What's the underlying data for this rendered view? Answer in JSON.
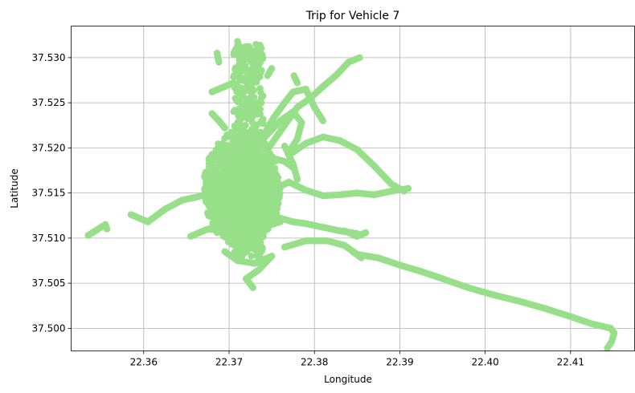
{
  "chart_data": {
    "type": "scatter",
    "title": "Trip for Vehicle 7",
    "xlabel": "Longitude",
    "ylabel": "Latitude",
    "xlim": [
      22.3515,
      22.4175
    ],
    "ylim": [
      37.4975,
      37.5335
    ],
    "xticks": [
      "22.36",
      "22.37",
      "22.38",
      "22.39",
      "22.40",
      "22.41"
    ],
    "yticks": [
      "37.500",
      "37.505",
      "37.510",
      "37.515",
      "37.520",
      "37.525",
      "37.530"
    ],
    "grid": true,
    "marker_color": "#98df8a",
    "paths": [
      [
        [
          22.3535,
          37.5103
        ],
        [
          22.3555,
          37.5115
        ],
        [
          22.3557,
          37.511
        ]
      ],
      [
        [
          22.3585,
          37.5126
        ],
        [
          22.3605,
          37.5118
        ],
        [
          22.3625,
          37.5132
        ],
        [
          22.3645,
          37.5142
        ],
        [
          22.366,
          37.5145
        ],
        [
          22.368,
          37.515
        ]
      ],
      [
        [
          22.3675,
          37.5158
        ],
        [
          22.369,
          37.5152
        ],
        [
          22.3705,
          37.5148
        ],
        [
          22.3725,
          37.5146
        ],
        [
          22.374,
          37.515
        ],
        [
          22.3755,
          37.5154
        ]
      ],
      [
        [
          22.3655,
          37.5102
        ],
        [
          22.3675,
          37.511
        ],
        [
          22.3695,
          37.5108
        ],
        [
          22.3715,
          37.511
        ],
        [
          22.374,
          37.5112
        ],
        [
          22.376,
          37.5118
        ]
      ],
      [
        [
          22.3735,
          37.5115
        ],
        [
          22.376,
          37.5122
        ],
        [
          22.3775,
          37.5118
        ],
        [
          22.379,
          37.5116
        ],
        [
          22.381,
          37.5112
        ],
        [
          22.383,
          37.5108
        ],
        [
          22.385,
          37.5105
        ]
      ],
      [
        [
          22.3765,
          37.509
        ],
        [
          22.379,
          37.5097
        ],
        [
          22.3815,
          37.5097
        ],
        [
          22.3835,
          37.5092
        ],
        [
          22.385,
          37.5082
        ],
        [
          22.3875,
          37.5078
        ],
        [
          22.39,
          37.507
        ],
        [
          22.3925,
          37.5063
        ],
        [
          22.395,
          37.5055
        ],
        [
          22.398,
          37.5045
        ],
        [
          22.401,
          37.5037
        ],
        [
          22.404,
          37.503
        ],
        [
          22.407,
          37.5022
        ],
        [
          22.41,
          37.5013
        ],
        [
          22.4125,
          37.5005
        ],
        [
          22.4147,
          37.5
        ],
        [
          22.4151,
          37.4995
        ],
        [
          22.4148,
          37.4985
        ],
        [
          22.4143,
          37.4978
        ]
      ],
      [
        [
          22.3755,
          37.5155
        ],
        [
          22.377,
          37.5162
        ],
        [
          22.379,
          37.5153
        ],
        [
          22.381,
          37.5147
        ],
        [
          22.383,
          37.5148
        ],
        [
          22.385,
          37.515
        ],
        [
          22.387,
          37.5148
        ],
        [
          22.389,
          37.5152
        ],
        [
          22.391,
          37.5155
        ]
      ],
      [
        [
          22.3835,
          37.5108
        ],
        [
          22.385,
          37.5102
        ],
        [
          22.386,
          37.5106
        ]
      ],
      [
        [
          22.3845,
          37.5085
        ],
        [
          22.3855,
          37.5078
        ]
      ],
      [
        [
          22.3705,
          37.5175
        ],
        [
          22.3725,
          37.5185
        ],
        [
          22.3745,
          37.519
        ],
        [
          22.3765,
          37.5185
        ],
        [
          22.3775,
          37.5178
        ]
      ],
      [
        [
          22.3775,
          37.5195
        ],
        [
          22.379,
          37.5205
        ],
        [
          22.381,
          37.5212
        ],
        [
          22.383,
          37.5208
        ],
        [
          22.385,
          37.5198
        ],
        [
          22.387,
          37.518
        ],
        [
          22.389,
          37.516
        ],
        [
          22.3905,
          37.5152
        ]
      ],
      [
        [
          22.3725,
          37.5195
        ],
        [
          22.3745,
          37.5215
        ],
        [
          22.376,
          37.523
        ],
        [
          22.3775,
          37.524
        ],
        [
          22.3785,
          37.5228
        ],
        [
          22.378,
          37.521
        ],
        [
          22.377,
          37.5195
        ]
      ],
      [
        [
          22.3745,
          37.5198
        ],
        [
          22.3765,
          37.5225
        ],
        [
          22.378,
          37.5245
        ],
        [
          22.3795,
          37.5255
        ],
        [
          22.381,
          37.5268
        ],
        [
          22.3825,
          37.528
        ],
        [
          22.384,
          37.5295
        ],
        [
          22.3853,
          37.53
        ]
      ],
      [
        [
          22.3738,
          37.521
        ],
        [
          22.3752,
          37.5233
        ],
        [
          22.3765,
          37.525
        ],
        [
          22.3775,
          37.5262
        ],
        [
          22.379,
          37.5265
        ],
        [
          22.38,
          37.5245
        ],
        [
          22.381,
          37.523
        ]
      ],
      [
        [
          22.3715,
          37.5298
        ],
        [
          22.3728,
          37.5302
        ],
        [
          22.3735,
          37.5292
        ]
      ],
      [
        [
          22.371,
          37.5318
        ],
        [
          22.3712,
          37.531
        ],
        [
          22.3722,
          37.5312
        ]
      ],
      [
        [
          22.3686,
          37.5305
        ],
        [
          22.3688,
          37.5295
        ]
      ],
      [
        [
          22.368,
          37.5262
        ],
        [
          22.3695,
          37.5268
        ],
        [
          22.3705,
          37.5272
        ]
      ],
      [
        [
          22.368,
          37.5238
        ],
        [
          22.3688,
          37.523
        ],
        [
          22.3695,
          37.5222
        ]
      ],
      [
        [
          22.3745,
          37.528
        ],
        [
          22.375,
          37.5288
        ]
      ],
      [
        [
          22.3776,
          37.528
        ],
        [
          22.378,
          37.5272
        ]
      ],
      [
        [
          22.3695,
          37.5085
        ],
        [
          22.371,
          37.5075
        ],
        [
          22.373,
          37.5072
        ],
        [
          22.375,
          37.508
        ],
        [
          22.3735,
          37.5065
        ],
        [
          22.372,
          37.5055
        ],
        [
          22.3728,
          37.5045
        ]
      ],
      [
        [
          22.3765,
          37.5202
        ],
        [
          22.3775,
          37.5182
        ],
        [
          22.378,
          37.5165
        ]
      ]
    ],
    "dense_region": {
      "x": [
        22.3665,
        22.377
      ],
      "y": [
        37.5075,
        37.5295
      ]
    }
  }
}
